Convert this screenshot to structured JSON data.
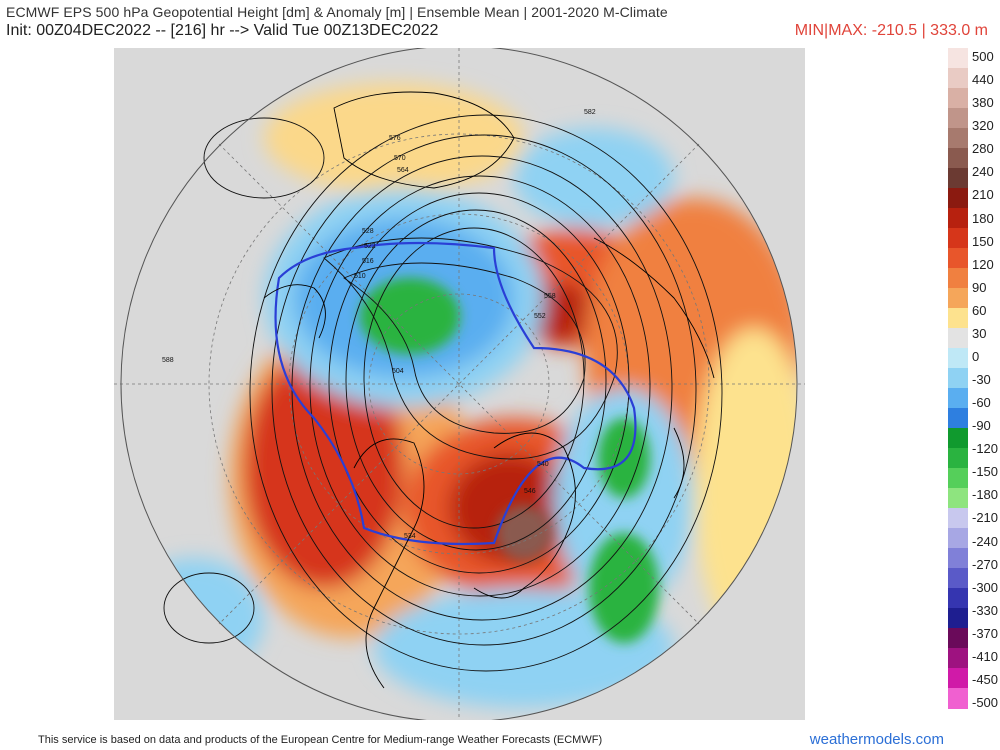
{
  "header": {
    "line1": "ECMWF EPS 500 hPa Geopotential Height [dm] & Anomaly [m] | Ensemble Mean | 2001-2020 M-Climate",
    "line2": "Init: 00Z04DEC2022 -- [216] hr --> Valid Tue 00Z13DEC2022",
    "minmax": "MIN|MAX: -210.5 | 333.0 m"
  },
  "colorbar": {
    "labels": [
      "500",
      "440",
      "380",
      "320",
      "280",
      "240",
      "210",
      "180",
      "150",
      "120",
      "90",
      "60",
      "30",
      "0",
      "-30",
      "-60",
      "-90",
      "-120",
      "-150",
      "-180",
      "-210",
      "-240",
      "-270",
      "-300",
      "-330",
      "-370",
      "-410",
      "-450",
      "-500"
    ],
    "colors": [
      "#f6e4e1",
      "#e9cbc4",
      "#d9b0a5",
      "#c0958a",
      "#a77a6e",
      "#8a5a4f",
      "#6b3a32",
      "#8b1a10",
      "#b7210f",
      "#d6361a",
      "#e8562b",
      "#f08040",
      "#f5a65a",
      "#fde28e",
      "#e3e3e3",
      "#bfe8f6",
      "#8fd2f3",
      "#5aaef0",
      "#2e7fe0",
      "#109a2e",
      "#2ab340",
      "#55cf5a",
      "#8ee47f",
      "#c8c8ee",
      "#a7a7e4",
      "#8080d8",
      "#5a5ac8",
      "#3535b0",
      "#1e1e90",
      "#6a0a5a",
      "#9e1280",
      "#d01aa8",
      "#f060d0"
    ]
  },
  "map": {
    "contour_labels": [
      "582",
      "576",
      "570",
      "564",
      "558",
      "552",
      "546",
      "540",
      "534",
      "528",
      "522",
      "516",
      "510",
      "504",
      "588"
    ]
  },
  "footer": {
    "credit": "This service is based on data and products of the European Centre for Medium-range Weather Forecasts (ECMWF)",
    "brand": "weathermodels.com"
  }
}
